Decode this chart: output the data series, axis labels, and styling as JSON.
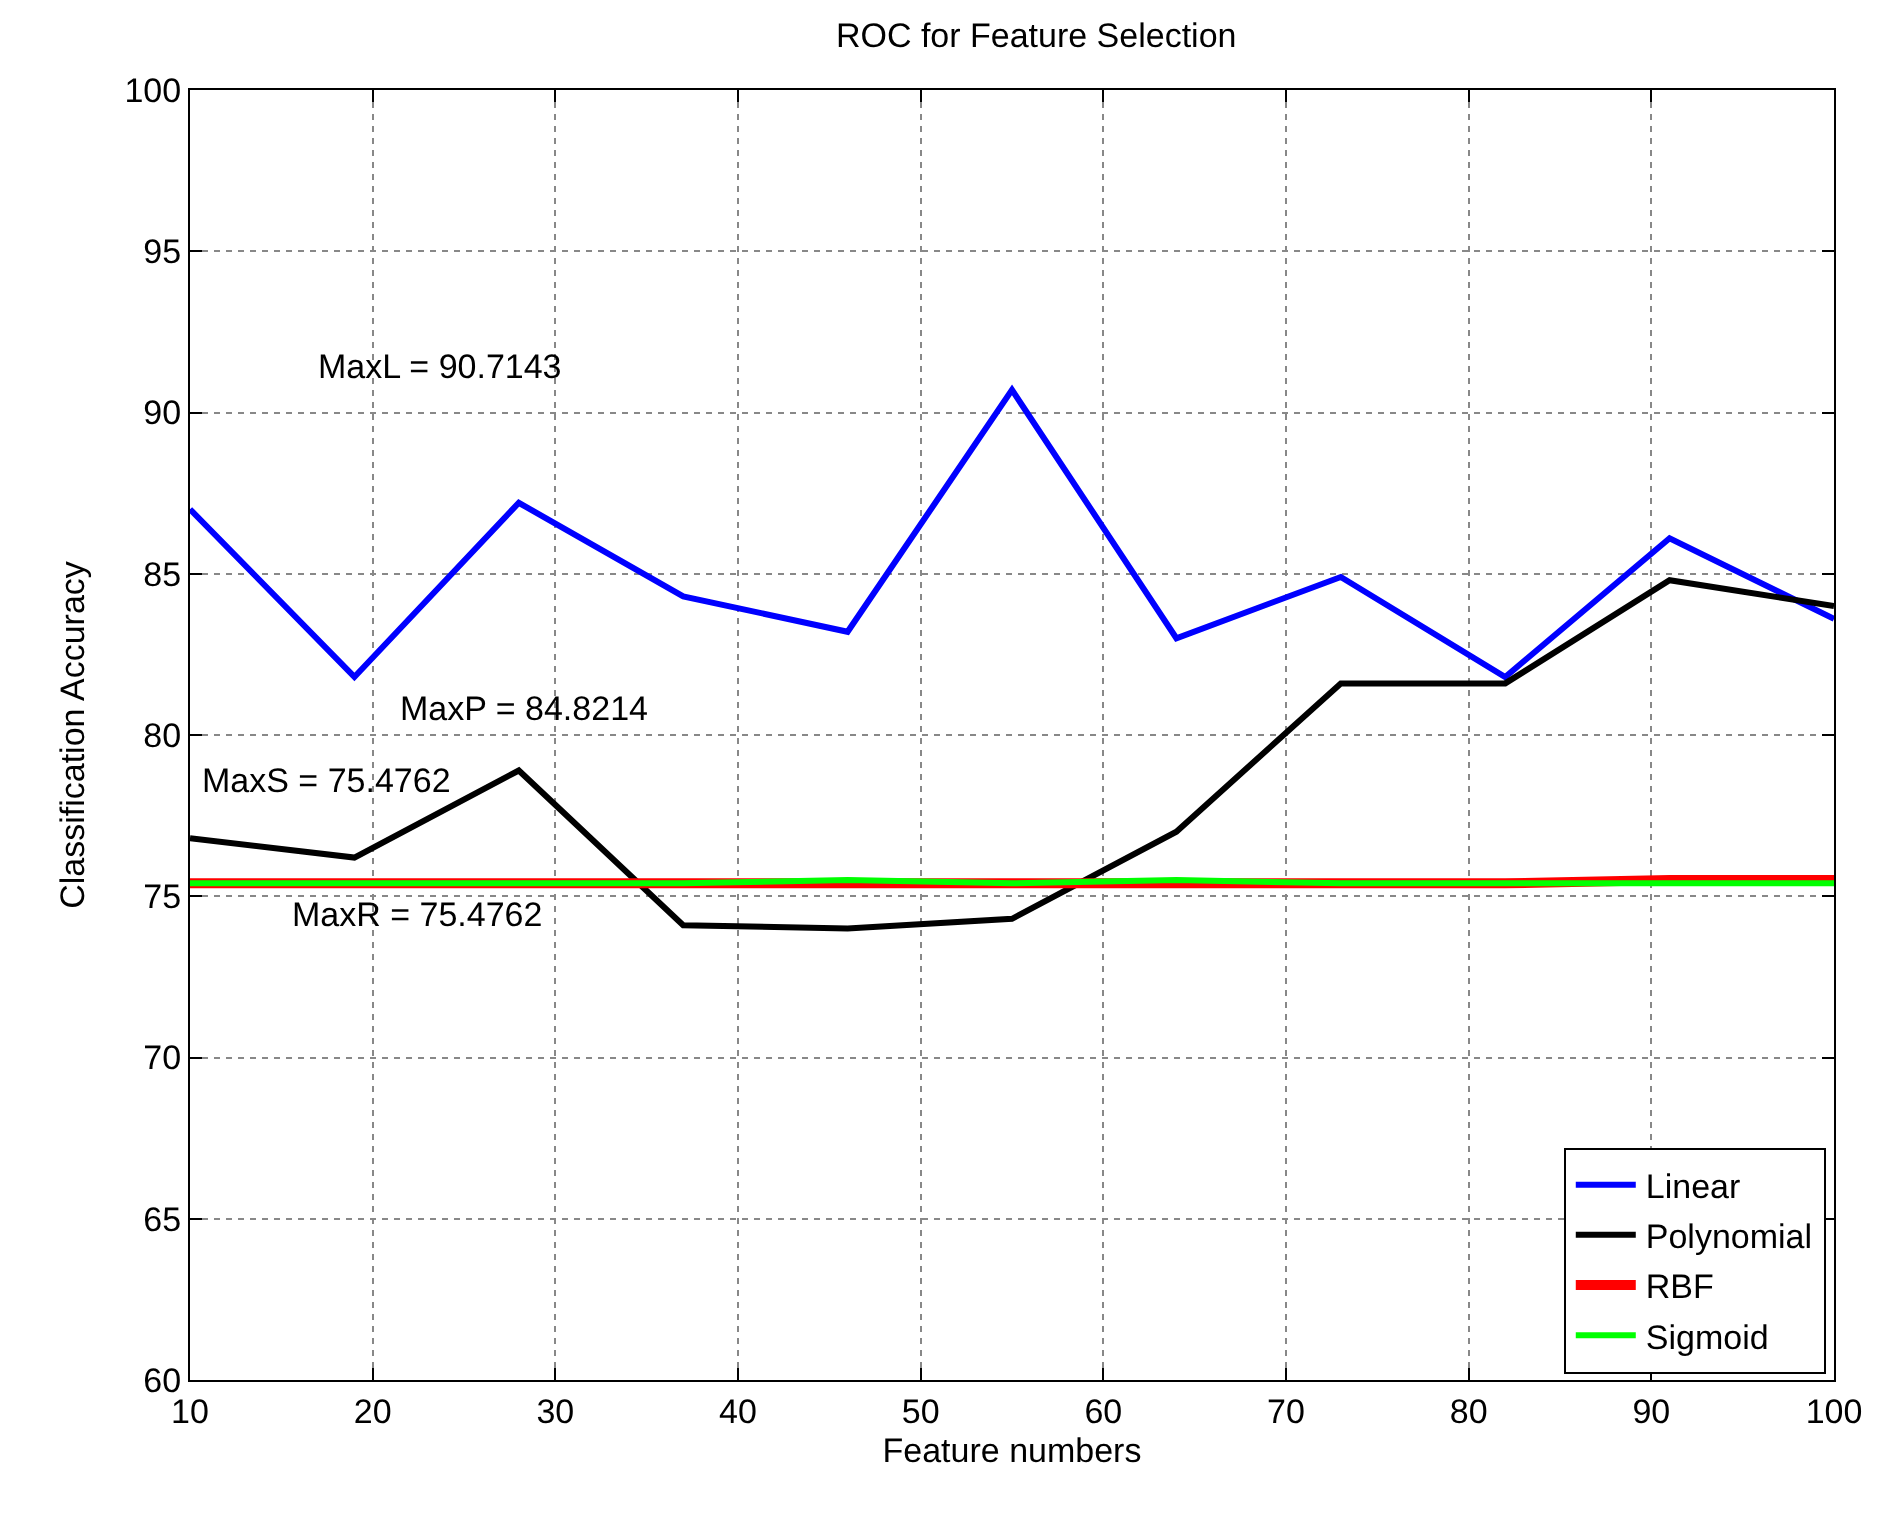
{
  "chart_data": {
    "type": "line",
    "title": "ROC for Feature Selection",
    "xlabel": "Feature numbers",
    "ylabel": "Classification Accuracy",
    "x": [
      10,
      19,
      28,
      37,
      46,
      55,
      64,
      73,
      82,
      91,
      100
    ],
    "series": [
      {
        "name": "Linear",
        "color": "#0000ff",
        "values": [
          87.0,
          81.8,
          87.2,
          84.3,
          83.2,
          90.7,
          83.0,
          84.9,
          81.8,
          86.1,
          83.6
        ]
      },
      {
        "name": "Polynomial",
        "color": "#000000",
        "values": [
          76.8,
          76.2,
          78.9,
          74.1,
          74.0,
          74.3,
          77.0,
          81.6,
          81.6,
          84.8,
          84.0
        ]
      },
      {
        "name": "RBF",
        "color": "#ff0000",
        "values": [
          75.4,
          75.4,
          75.4,
          75.4,
          75.4,
          75.4,
          75.4,
          75.4,
          75.4,
          75.5,
          75.5
        ]
      },
      {
        "name": "Sigmoid",
        "color": "#00ff00",
        "values": [
          75.4,
          75.4,
          75.4,
          75.4,
          75.5,
          75.4,
          75.5,
          75.4,
          75.4,
          75.4,
          75.4
        ]
      }
    ],
    "annotations": [
      "MaxL = 90.7143",
      "MaxP = 84.8214",
      "MaxS = 75.4762",
      "MaxR = 75.4762"
    ],
    "xlim": [
      10,
      100
    ],
    "xticks": [
      10,
      20,
      30,
      40,
      50,
      60,
      70,
      80,
      90,
      100
    ],
    "ylim": [
      60,
      100
    ],
    "yticks": [
      60,
      65,
      70,
      75,
      80,
      85,
      90,
      95,
      100
    ],
    "grid": true,
    "legend": "bottom right",
    "line_style": "solid",
    "marker": "none"
  }
}
